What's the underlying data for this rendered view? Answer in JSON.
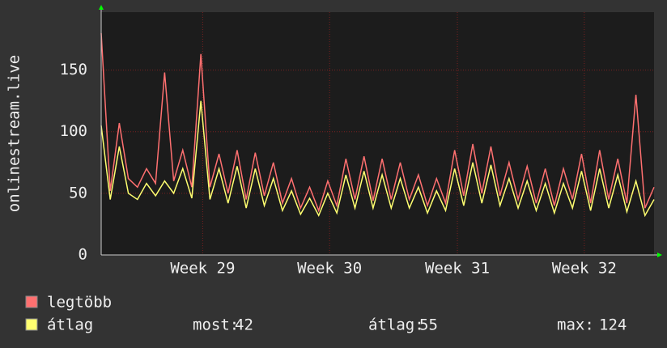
{
  "chart_data": {
    "type": "line",
    "y_label": "onlinestream.live",
    "series": [
      {
        "name": "legtöbb",
        "color": "#ff7070",
        "values": [
          180,
          52,
          107,
          62,
          55,
          70,
          58,
          148,
          60,
          85,
          55,
          163,
          55,
          82,
          50,
          85,
          45,
          83,
          48,
          75,
          42,
          62,
          38,
          55,
          36,
          60,
          40,
          78,
          45,
          80,
          44,
          78,
          45,
          75,
          45,
          65,
          40,
          62,
          42,
          85,
          48,
          90,
          50,
          88,
          48,
          75,
          45,
          72,
          42,
          70,
          40,
          70,
          45,
          82,
          42,
          85,
          45,
          78,
          42,
          130,
          38,
          55
        ]
      },
      {
        "name": "átlag",
        "color": "#ffff70",
        "values": [
          105,
          45,
          88,
          50,
          45,
          58,
          48,
          60,
          50,
          70,
          46,
          125,
          45,
          70,
          42,
          72,
          38,
          70,
          40,
          62,
          36,
          52,
          33,
          46,
          32,
          50,
          34,
          65,
          38,
          68,
          38,
          65,
          38,
          62,
          38,
          55,
          34,
          52,
          36,
          70,
          40,
          75,
          42,
          73,
          40,
          62,
          38,
          60,
          36,
          58,
          34,
          58,
          38,
          68,
          36,
          70,
          38,
          65,
          35,
          60,
          32,
          45
        ]
      }
    ],
    "xlim": [
      0,
      61
    ],
    "xticks": [
      {
        "value": 11.2,
        "label": "Week 29"
      },
      {
        "value": 25.2,
        "label": "Week 30"
      },
      {
        "value": 39.3,
        "label": "Week 31"
      },
      {
        "value": 53.3,
        "label": "Week 32"
      }
    ],
    "ylim": [
      0,
      197
    ],
    "yticks": [
      0,
      50,
      100,
      150
    ],
    "grid": true,
    "stats": [
      {
        "label": "most:",
        "value": 42
      },
      {
        "label": "átlag:",
        "value": 55
      },
      {
        "label": "max:",
        "value": 124
      }
    ]
  }
}
